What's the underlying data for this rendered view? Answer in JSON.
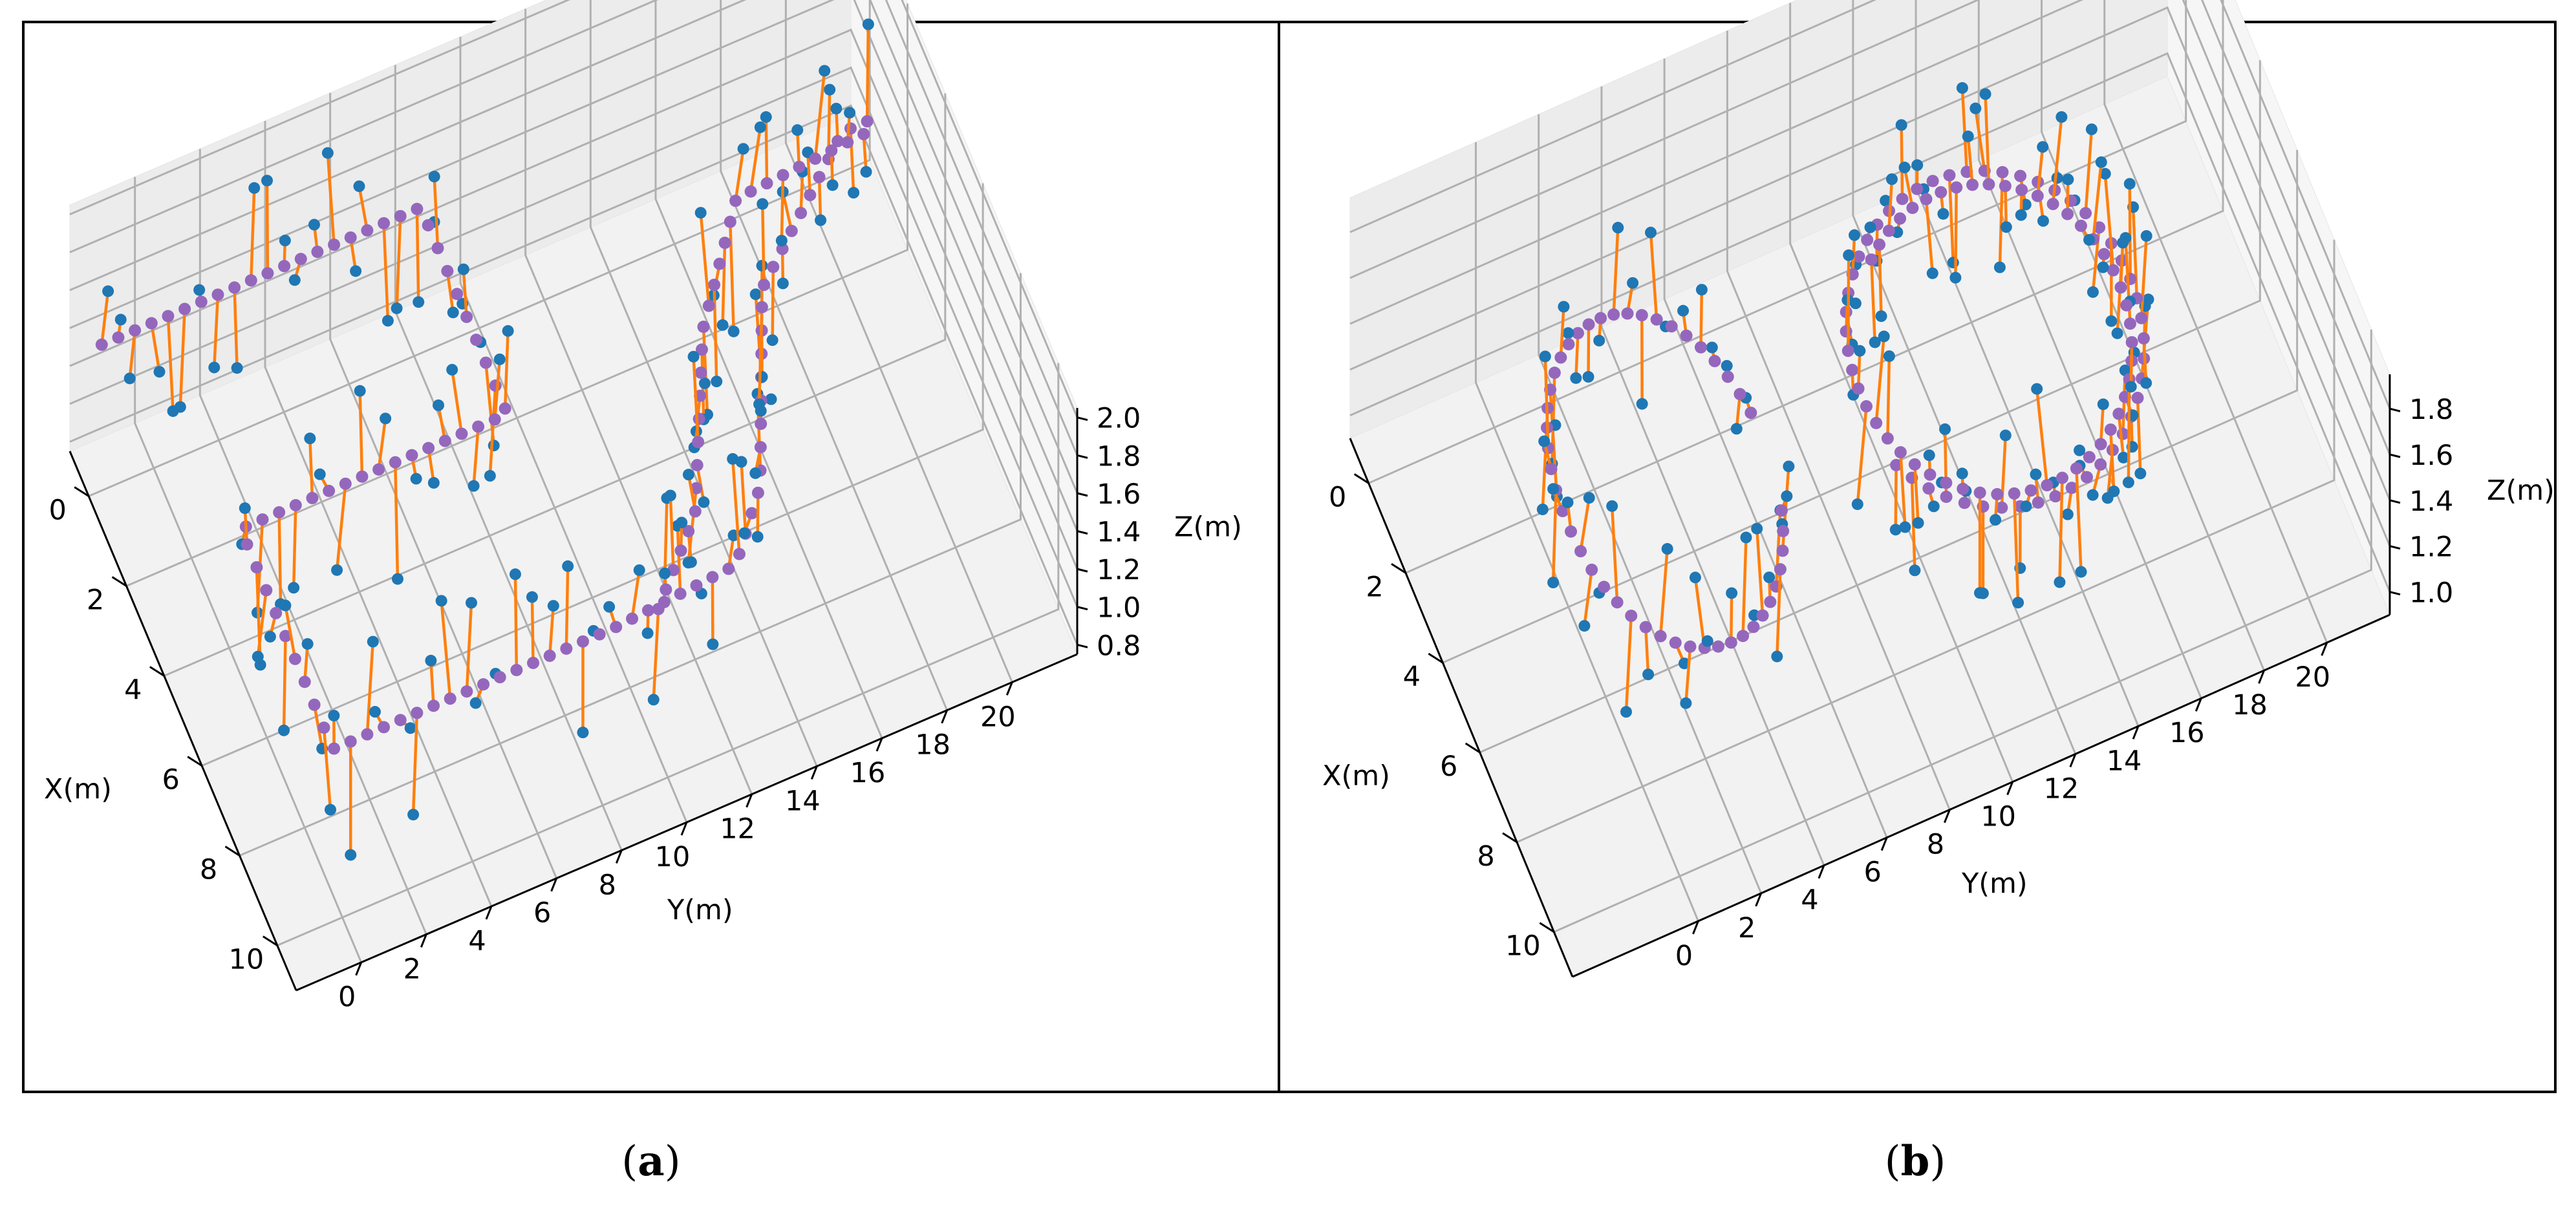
{
  "figure": {
    "colors": {
      "reference": "#9467bd",
      "estimate": "#1f77b4",
      "error": "#ff7f0e"
    }
  },
  "chart_data": [
    {
      "type": "scatter",
      "panel": "a",
      "caption_open": "(",
      "caption_letter": "a",
      "caption_close": ")",
      "xlabel": "X(m)",
      "ylabel": "Y(m)",
      "zlabel": "Z(m)",
      "xlim": [
        -1,
        11
      ],
      "ylim": [
        -2,
        22
      ],
      "zlim": [
        0.75,
        2.05
      ],
      "x_ticks": [
        "0",
        "2",
        "4",
        "6",
        "8",
        "10"
      ],
      "y_ticks": [
        "0",
        "2",
        "4",
        "6",
        "8",
        "10",
        "12",
        "14",
        "16",
        "18",
        "20"
      ],
      "z_ticks": [
        "0.8",
        "1.0",
        "1.2",
        "1.4",
        "1.6",
        "1.8",
        "2.0"
      ],
      "reference_path": [
        [
          0,
          -1.6
        ],
        [
          0,
          8.2
        ],
        [
          4.6,
          8.2
        ],
        [
          4.6,
          0
        ],
        [
          9.5,
          0
        ],
        [
          9.5,
          8.6
        ],
        [
          9.3,
          12.5
        ],
        [
          8,
          14
        ],
        [
          4.3,
          16.2
        ],
        [
          2,
          20
        ],
        [
          2,
          20.8
        ],
        [
          2.2,
          20.8
        ],
        [
          2.4,
          16.5
        ],
        [
          4.6,
          14.2
        ],
        [
          8,
          12
        ],
        [
          9.5,
          10
        ]
      ],
      "reference_z": 1.52,
      "estimate_z_range": [
        0.85,
        2.0
      ],
      "num_points": 130
    },
    {
      "type": "scatter",
      "panel": "b",
      "caption_open": "(",
      "caption_letter": "b",
      "caption_close": ")",
      "xlabel": "X(m)",
      "ylabel": "Y(m)",
      "zlabel": "Z(m)",
      "xlim": [
        -1,
        11
      ],
      "ylim": [
        -4,
        22
      ],
      "zlim": [
        0.9,
        1.95
      ],
      "x_ticks": [
        "0",
        "2",
        "4",
        "6",
        "8",
        "10"
      ],
      "y_ticks": [
        "0",
        "2",
        "4",
        "6",
        "8",
        "10",
        "12",
        "14",
        "16",
        "18",
        "20"
      ],
      "z_ticks": [
        "1.0",
        "1.2",
        "1.4",
        "1.6",
        "1.8"
      ],
      "reference_z": 1.45,
      "estimate_z_range": [
        0.95,
        1.85
      ],
      "num_points": 140
    }
  ]
}
